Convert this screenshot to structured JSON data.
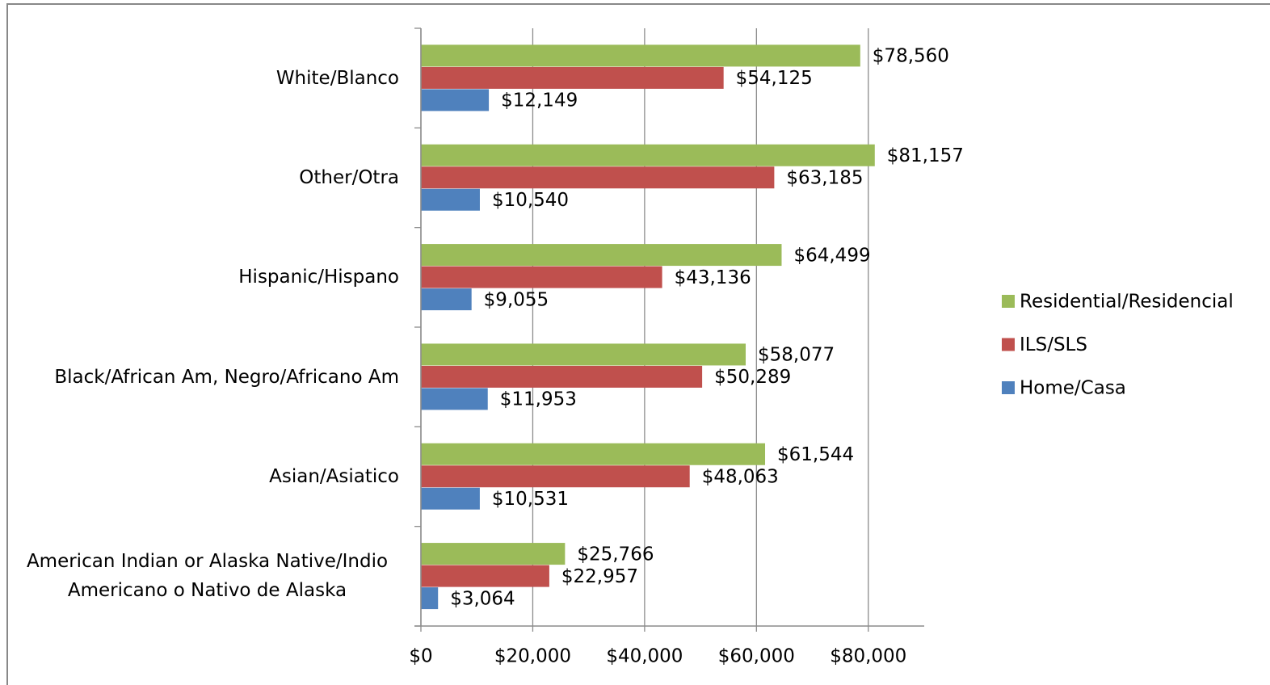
{
  "chart_data": {
    "type": "bar",
    "orientation": "horizontal",
    "categories": [
      "White/Blanco",
      "Other/Otra",
      "Hispanic/Hispano",
      "Black/African Am, Negro/Africano Am",
      "Asian/Asiatico",
      "American Indian or Alaska Native/Indio Americano o Nativo de Alaska"
    ],
    "series": [
      {
        "name": "Residential/Residencial",
        "color": "#9bbb59",
        "values": [
          78560,
          81157,
          64499,
          58077,
          61544,
          25766
        ],
        "value_labels": [
          "$78,560",
          "$81,157",
          "$64,499",
          "$58,077",
          "$61,544",
          "$25,766"
        ]
      },
      {
        "name": "ILS/SLS",
        "color": "#c0504d",
        "values": [
          54125,
          63185,
          43136,
          50289,
          48063,
          22957
        ],
        "value_labels": [
          "$54,125",
          "$63,185",
          "$43,136",
          "$50,289",
          "$48,063",
          "$22,957"
        ]
      },
      {
        "name": "Home/Casa",
        "color": "#4f81bd",
        "values": [
          12149,
          10540,
          9055,
          11953,
          10531,
          3064
        ],
        "value_labels": [
          "$12,149",
          "$10,540",
          "$9,055",
          "$11,953",
          "$10,531",
          "$3,064"
        ]
      }
    ],
    "xlim": [
      0,
      90000
    ],
    "xticks": [
      {
        "value": 0,
        "label": "$0"
      },
      {
        "value": 20000,
        "label": "$20,000"
      },
      {
        "value": 40000,
        "label": "$40,000"
      },
      {
        "value": 60000,
        "label": "$60,000"
      },
      {
        "value": 80000,
        "label": "$80,000"
      }
    ],
    "grid": true,
    "legend": "right"
  }
}
